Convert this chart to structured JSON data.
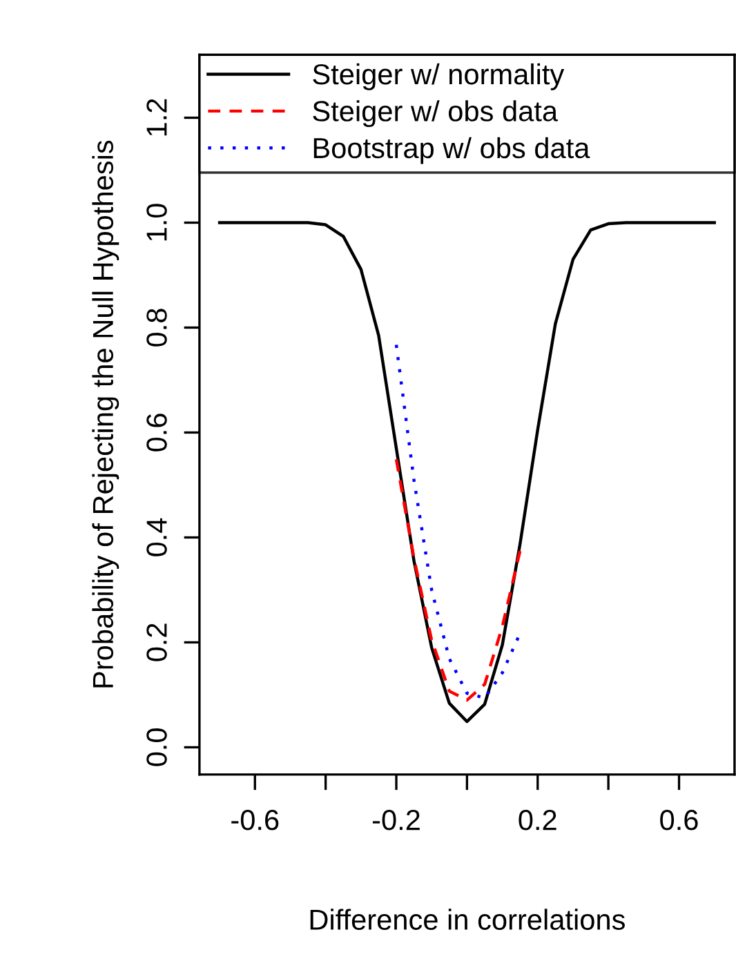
{
  "chart_data": {
    "type": "line",
    "xlabel": "Difference in correlations",
    "ylabel": "Probability of Rejecting the Null Hypothesis",
    "xlim": [
      -0.757,
      0.757
    ],
    "ylim": [
      -0.052,
      1.32
    ],
    "xticks": [
      {
        "value": -0.6,
        "label": "-0.6"
      },
      {
        "value": -0.4,
        "label": null
      },
      {
        "value": -0.2,
        "label": "-0.2"
      },
      {
        "value": 0,
        "label": null
      },
      {
        "value": 0.2,
        "label": "0.2"
      },
      {
        "value": 0.4,
        "label": null
      },
      {
        "value": 0.6,
        "label": "0.6"
      }
    ],
    "yticks": [
      {
        "value": 0,
        "label": "0.0"
      },
      {
        "value": 0.2,
        "label": "0.2"
      },
      {
        "value": 0.4,
        "label": "0.4"
      },
      {
        "value": 0.6,
        "label": "0.6"
      },
      {
        "value": 0.8,
        "label": "0.8"
      },
      {
        "value": 1.0,
        "label": "1.0"
      },
      {
        "value": 1.2,
        "label": "1.2"
      }
    ],
    "grid": false,
    "legend": "top",
    "marker": "none",
    "series": [
      {
        "name": "Steiger w/ normality",
        "color": "#000000",
        "line_style": "solid",
        "x": [
          -0.7,
          -0.65,
          -0.6,
          -0.55,
          -0.5,
          -0.45,
          -0.4,
          -0.35,
          -0.3,
          -0.25,
          -0.2,
          -0.15,
          -0.1,
          -0.05,
          0,
          0.05,
          0.1,
          0.15,
          0.2,
          0.25,
          0.3,
          0.35,
          0.4,
          0.45,
          0.5,
          0.55,
          0.6,
          0.65,
          0.7
        ],
        "values": [
          1.0,
          1.0,
          1.0,
          1.0,
          1.0,
          1.0,
          0.996,
          0.974,
          0.911,
          0.785,
          0.57,
          0.355,
          0.19,
          0.084,
          0.049,
          0.082,
          0.195,
          0.387,
          0.605,
          0.807,
          0.93,
          0.986,
          0.998,
          1.0,
          1.0,
          1.0,
          1.0,
          1.0,
          1.0
        ]
      },
      {
        "name": "Steiger w/ obs data",
        "color": "#ff0000",
        "line_style": "dashed",
        "x": [
          -0.2,
          -0.15,
          -0.1,
          -0.05,
          0,
          0.05,
          0.1,
          0.15
        ],
        "values": [
          0.549,
          0.36,
          0.204,
          0.107,
          0.09,
          0.12,
          0.23,
          0.374
        ]
      },
      {
        "name": "Bootstrap w/ obs data",
        "color": "#0000ff",
        "line_style": "dotted",
        "x": [
          -0.2,
          -0.15,
          -0.1,
          -0.05,
          0,
          0.05,
          0.1,
          0.15
        ],
        "values": [
          0.767,
          0.509,
          0.3,
          0.169,
          0.103,
          0.094,
          0.142,
          0.217
        ]
      }
    ]
  }
}
